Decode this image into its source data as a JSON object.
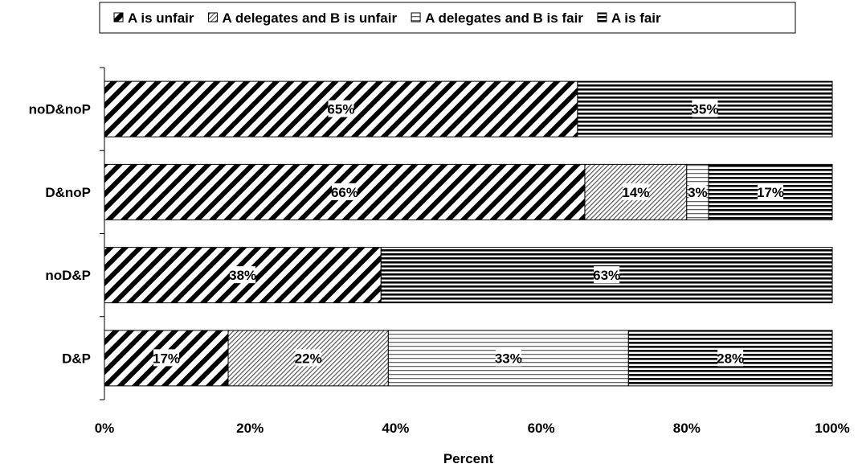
{
  "chart_data": {
    "type": "bar",
    "orientation": "horizontal",
    "stacked": true,
    "categories": [
      "noD&noP",
      "D&noP",
      "noD&P",
      "D&P"
    ],
    "series": [
      {
        "name": "A is unfair",
        "values": [
          65,
          66,
          38,
          17
        ],
        "labels": [
          "65%",
          "66%",
          "38%",
          "17%"
        ],
        "pattern": "wide-diagonal"
      },
      {
        "name": "A delegates and B is unfair",
        "values": [
          0,
          14,
          0,
          22
        ],
        "labels": [
          "",
          "14%",
          "",
          "22%"
        ],
        "pattern": "fine-diagonal"
      },
      {
        "name": "A delegates and B is fair",
        "values": [
          0,
          3,
          0,
          33
        ],
        "labels": [
          "",
          "3%",
          "",
          "33%"
        ],
        "pattern": "light-horizontal"
      },
      {
        "name": "A is fair",
        "values": [
          35,
          17,
          63,
          28
        ],
        "labels": [
          "35%",
          "17%",
          "63%",
          "28%"
        ],
        "pattern": "dense-horizontal"
      }
    ],
    "xlabel": "Percent",
    "ylabel": "",
    "xlim": [
      0,
      100
    ],
    "xticks": [
      "0%",
      "20%",
      "40%",
      "60%",
      "80%",
      "100%"
    ],
    "legend_position": "top",
    "grid": false,
    "colors": {
      "ink": "#000000",
      "background": "#ffffff"
    }
  }
}
